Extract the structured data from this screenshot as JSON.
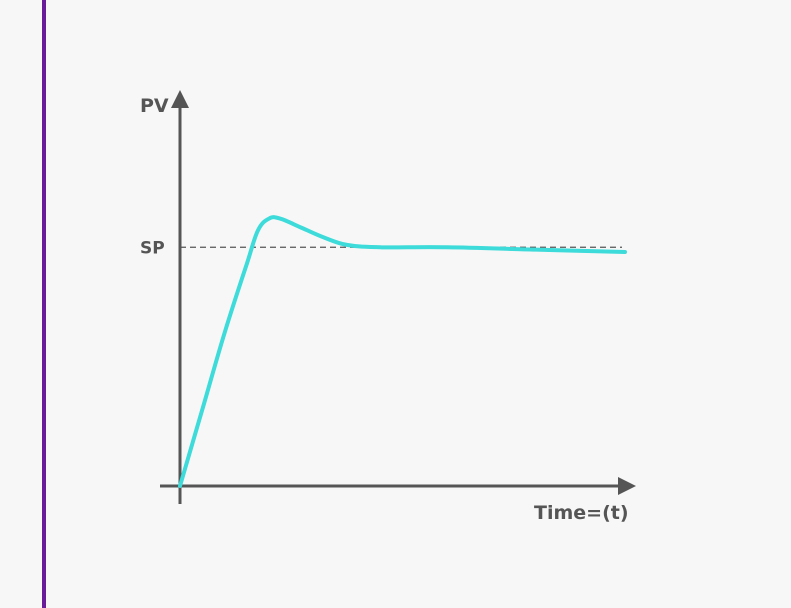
{
  "colors": {
    "background": "#f7f7f7",
    "left_rule": "#6a1b9a",
    "axis": "#555555",
    "setpoint_line": "#555555",
    "response_curve": "#3ddbd9"
  },
  "chart_data": {
    "type": "line",
    "title": "",
    "xlabel": "Time=(t)",
    "ylabel": "PV",
    "y_reference": {
      "label": "SP",
      "value": 1.0,
      "style": "dashed"
    },
    "xlim": [
      0,
      10
    ],
    "ylim": [
      0,
      1.6
    ],
    "grid": false,
    "series": [
      {
        "values_xy": [
          [
            0,
            0
          ],
          [
            0.5,
            0.32
          ],
          [
            1.0,
            0.64
          ],
          [
            1.5,
            0.93
          ],
          [
            1.75,
            1.07
          ],
          [
            2.0,
            1.12
          ],
          [
            2.25,
            1.12
          ],
          [
            2.75,
            1.08
          ],
          [
            3.25,
            1.04
          ],
          [
            3.75,
            1.01
          ],
          [
            4.5,
            1.0
          ],
          [
            6.0,
            1.0
          ],
          [
            8.0,
            0.99
          ],
          [
            10.0,
            0.98
          ]
        ]
      }
    ]
  }
}
